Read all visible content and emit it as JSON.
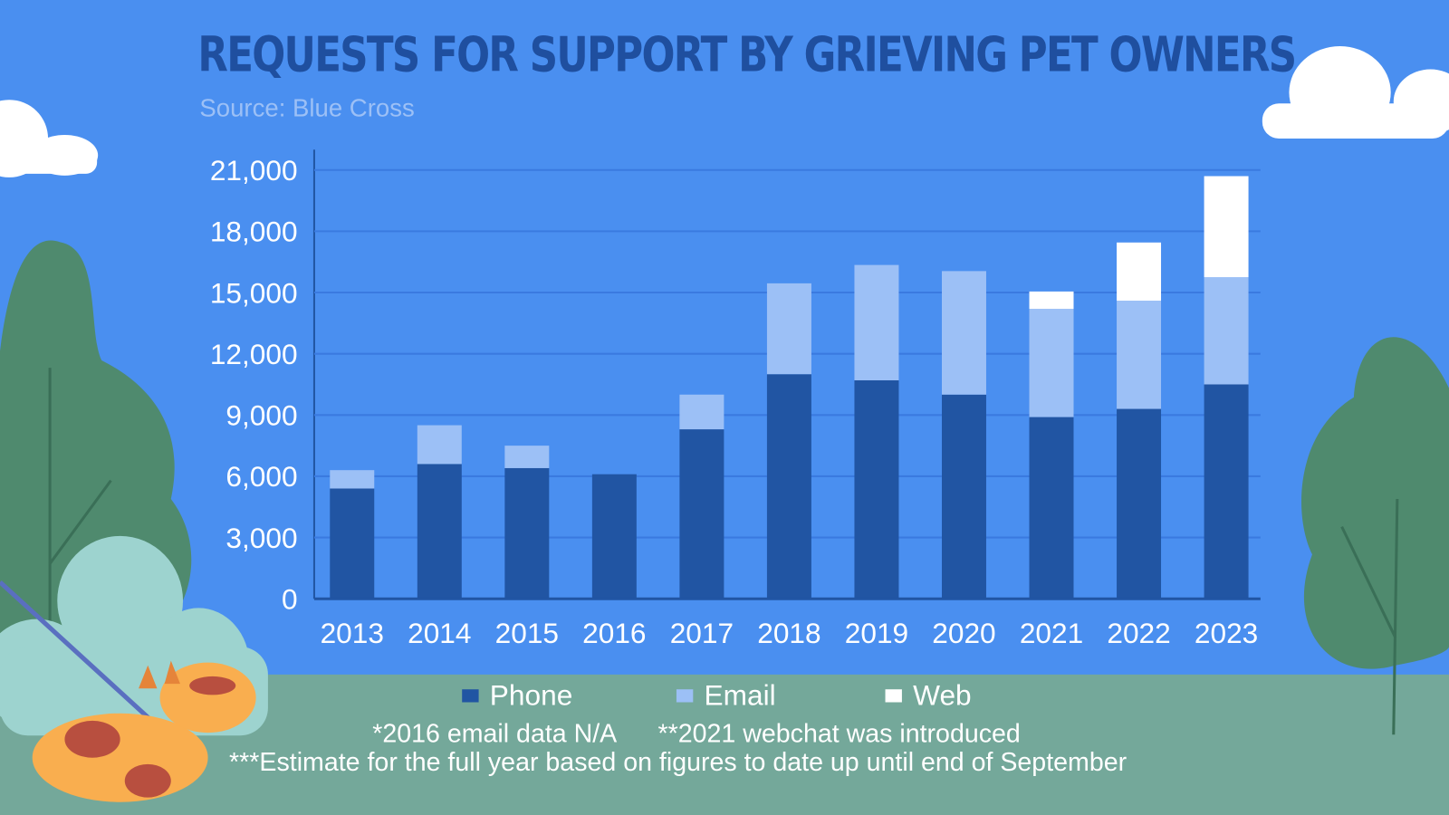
{
  "chart_data": {
    "type": "bar",
    "stacked": true,
    "title": "REQUESTS FOR SUPPORT BY GRIEVING PET OWNERS",
    "subtitle": "Source: Blue Cross",
    "categories": [
      "2013",
      "2014",
      "2015",
      "2016",
      "2017",
      "2018",
      "2019",
      "2020",
      "2021",
      "2022",
      "2023"
    ],
    "series": [
      {
        "name": "Phone",
        "color": "#2155a3",
        "values": [
          5400,
          6600,
          6400,
          6100,
          8300,
          11000,
          10700,
          10000,
          8900,
          9300,
          10500
        ]
      },
      {
        "name": "Email",
        "color": "#9cc0f6",
        "values": [
          900,
          1900,
          1100,
          0,
          1700,
          4450,
          5650,
          6050,
          5300,
          5300,
          5250
        ]
      },
      {
        "name": "Web",
        "color": "#ffffff",
        "values": [
          0,
          0,
          0,
          0,
          0,
          0,
          0,
          0,
          850,
          2850,
          4950
        ]
      }
    ],
    "ylim": [
      0,
      21000
    ],
    "yticks": [
      "0",
      "3,000",
      "6,000",
      "9,000",
      "12,000",
      "15,000",
      "18,000",
      "21,000"
    ],
    "grid": true,
    "legend": "bottom",
    "notes": [
      "*2016 email data N/A",
      "**2021 webchat was introduced",
      "***Estimate for the full year based on figures to date up until end of September"
    ]
  },
  "colors": {
    "background": "#4a8ff0",
    "ground": "#74a89a"
  }
}
